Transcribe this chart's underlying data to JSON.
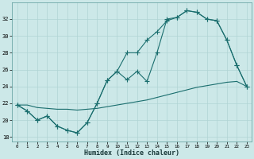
{
  "xlabel": "Humidex (Indice chaleur)",
  "bg_color": "#cce8e8",
  "grid_color": "#b0d4d4",
  "line_color": "#1a6e6e",
  "xlim": [
    -0.5,
    23.5
  ],
  "ylim": [
    17.5,
    34.0
  ],
  "xticks": [
    0,
    1,
    2,
    3,
    4,
    5,
    6,
    7,
    8,
    9,
    10,
    11,
    12,
    13,
    14,
    15,
    16,
    17,
    18,
    19,
    20,
    21,
    22,
    23
  ],
  "yticks": [
    18,
    20,
    22,
    24,
    26,
    28,
    30,
    32
  ],
  "line1_x": [
    0,
    1,
    2,
    3,
    4,
    5,
    6,
    7,
    8,
    9,
    10,
    11,
    12,
    13,
    14,
    15,
    16,
    17,
    18,
    19,
    20,
    21,
    22,
    23
  ],
  "line1_y": [
    21.8,
    21.1,
    20.0,
    20.5,
    19.3,
    18.8,
    18.5,
    19.7,
    22.0,
    24.7,
    25.8,
    24.8,
    25.8,
    24.6,
    28.0,
    32.0,
    32.2,
    33.0,
    32.8,
    32.0,
    31.8,
    29.5,
    26.5,
    24.0
  ],
  "line2_x": [
    0,
    1,
    2,
    3,
    4,
    5,
    6,
    7,
    8,
    9,
    10,
    11,
    12,
    13,
    14,
    15,
    16,
    17,
    18,
    19,
    20,
    21,
    22,
    23
  ],
  "line2_y": [
    21.8,
    21.8,
    21.5,
    21.4,
    21.3,
    21.3,
    21.2,
    21.3,
    21.4,
    21.6,
    21.8,
    22.0,
    22.2,
    22.4,
    22.7,
    23.0,
    23.3,
    23.6,
    23.9,
    24.1,
    24.3,
    24.5,
    24.6,
    24.0
  ],
  "line3_x": [
    0,
    1,
    2,
    3,
    4,
    5,
    6,
    7,
    8,
    9,
    10,
    11,
    12,
    13,
    14,
    15,
    16,
    17,
    18,
    19,
    20,
    21,
    22,
    23
  ],
  "line3_y": [
    21.8,
    21.1,
    20.0,
    20.5,
    19.3,
    18.8,
    18.5,
    19.7,
    22.0,
    24.7,
    25.8,
    28.0,
    28.0,
    29.5,
    30.5,
    31.8,
    32.2,
    33.0,
    32.8,
    32.0,
    31.8,
    29.5,
    26.5,
    24.0
  ]
}
